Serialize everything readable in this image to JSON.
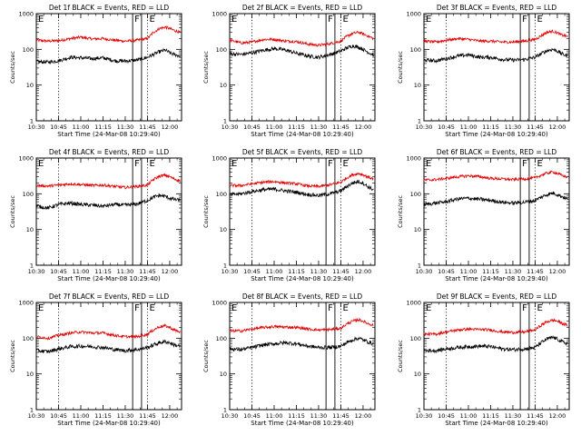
{
  "figure": {
    "panels": [
      {
        "title": "Det 1f BLACK = Events, RED = LLD"
      },
      {
        "title": "Det 2f BLACK = Events, RED = LLD"
      },
      {
        "title": "Det 3f BLACK = Events, RED = LLD"
      },
      {
        "title": "Det 4f BLACK = Events, RED = LLD"
      },
      {
        "title": "Det 5f BLACK = Events, RED = LLD"
      },
      {
        "title": "Det 6f BLACK = Events, RED = LLD"
      },
      {
        "title": "Det 7f BLACK = Events, RED = LLD"
      },
      {
        "title": "Det 8f BLACK = Events, RED = LLD"
      },
      {
        "title": "Det 9f BLACK = Events, RED = LLD"
      }
    ],
    "xlabel": "Start Time (24-Mar-08 10:29:40)",
    "ylabel": "Counts/sec",
    "x_ticks": [
      "10:30",
      "10:45",
      "11:00",
      "11:15",
      "11:30",
      "11:45",
      "12:00"
    ],
    "y_ticks": [
      "1",
      "10",
      "100",
      "1000"
    ],
    "markers": [
      "E",
      "F",
      "E"
    ]
  },
  "chart_data": {
    "type": "line",
    "y_scale": "log",
    "ylim": [
      1,
      1000
    ],
    "xlim": [
      "10:30",
      "12:08"
    ],
    "grid": false,
    "colors": {
      "events": "#000000",
      "lld": "#e00000"
    },
    "marker_lines": {
      "solid": [
        "11:35",
        "11:41"
      ],
      "dotted": [
        "10:45",
        "11:45"
      ]
    },
    "x": [
      "10:30",
      "10:38",
      "10:45",
      "10:53",
      "11:00",
      "11:08",
      "11:15",
      "11:23",
      "11:30",
      "11:38",
      "11:45",
      "11:49",
      "11:53",
      "11:57",
      "12:00",
      "12:03",
      "12:07"
    ],
    "panels": [
      {
        "events": [
          45,
          44,
          48,
          60,
          58,
          55,
          58,
          48,
          47,
          50,
          60,
          72,
          85,
          95,
          80,
          72,
          65
        ],
        "lld": [
          180,
          170,
          175,
          200,
          220,
          195,
          200,
          180,
          170,
          180,
          200,
          300,
          380,
          420,
          380,
          340,
          300
        ]
      },
      {
        "events": [
          75,
          72,
          80,
          95,
          105,
          95,
          78,
          65,
          60,
          72,
          90,
          110,
          125,
          115,
          100,
          85,
          70
        ],
        "lld": [
          180,
          150,
          160,
          190,
          190,
          170,
          165,
          140,
          130,
          145,
          170,
          230,
          280,
          300,
          270,
          240,
          200
        ]
      },
      {
        "events": [
          50,
          48,
          55,
          65,
          70,
          60,
          60,
          52,
          50,
          52,
          60,
          75,
          92,
          100,
          90,
          75,
          65
        ],
        "lld": [
          170,
          160,
          180,
          200,
          190,
          170,
          170,
          160,
          160,
          170,
          190,
          240,
          300,
          320,
          290,
          250,
          230
        ]
      },
      {
        "events": [
          45,
          40,
          50,
          55,
          50,
          48,
          45,
          50,
          48,
          52,
          65,
          80,
          90,
          85,
          75,
          70,
          65
        ],
        "lld": [
          170,
          165,
          175,
          190,
          180,
          170,
          175,
          160,
          150,
          160,
          175,
          250,
          310,
          330,
          300,
          260,
          230
        ]
      },
      {
        "events": [
          95,
          100,
          115,
          130,
          135,
          120,
          110,
          95,
          90,
          100,
          120,
          160,
          200,
          220,
          200,
          160,
          130
        ],
        "lld": [
          170,
          170,
          190,
          210,
          220,
          200,
          190,
          165,
          160,
          180,
          210,
          280,
          340,
          370,
          340,
          300,
          260
        ]
      },
      {
        "events": [
          50,
          55,
          60,
          72,
          75,
          70,
          65,
          58,
          55,
          58,
          65,
          80,
          95,
          105,
          95,
          85,
          70
        ],
        "lld": [
          240,
          250,
          270,
          300,
          320,
          300,
          270,
          260,
          250,
          260,
          280,
          330,
          380,
          410,
          370,
          330,
          290
        ]
      },
      {
        "events": [
          45,
          42,
          50,
          58,
          60,
          58,
          55,
          48,
          45,
          48,
          55,
          65,
          75,
          80,
          75,
          65,
          60
        ],
        "lld": [
          110,
          100,
          120,
          140,
          150,
          140,
          140,
          120,
          110,
          110,
          130,
          170,
          210,
          220,
          200,
          170,
          150
        ]
      },
      {
        "events": [
          50,
          48,
          55,
          65,
          70,
          75,
          70,
          60,
          55,
          55,
          60,
          75,
          90,
          100,
          90,
          80,
          70
        ],
        "lld": [
          160,
          160,
          180,
          200,
          210,
          205,
          200,
          180,
          170,
          175,
          190,
          250,
          300,
          330,
          300,
          260,
          230
        ]
      },
      {
        "events": [
          45,
          45,
          50,
          55,
          58,
          60,
          58,
          50,
          48,
          50,
          55,
          75,
          95,
          105,
          95,
          80,
          70
        ],
        "lld": [
          130,
          130,
          150,
          170,
          180,
          175,
          170,
          150,
          145,
          150,
          170,
          230,
          290,
          320,
          300,
          260,
          230
        ]
      }
    ]
  }
}
